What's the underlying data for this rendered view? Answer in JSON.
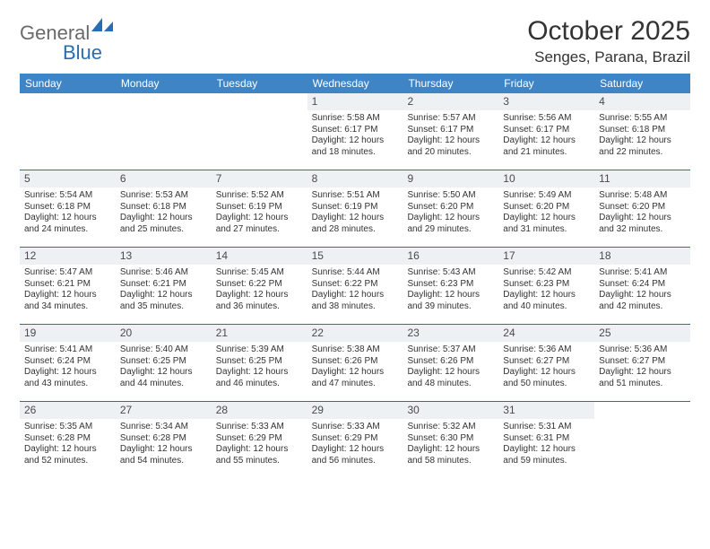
{
  "brand": {
    "general": "General",
    "blue": "Blue",
    "accent_color": "#2a6db0",
    "header_bg": "#3f85c6",
    "text_color": "#333333",
    "muted_text": "#6a6a6a",
    "date_bg": "#eef1f3"
  },
  "title": "October 2025",
  "location": "Senges, Parana, Brazil",
  "layout": {
    "month_fontsize_pt": 22,
    "location_fontsize_pt": 13,
    "dayhead_fontsize_pt": 9,
    "cell_fontsize_pt": 7.5,
    "rows": 5,
    "cols": 7
  },
  "day_headers": [
    "Sunday",
    "Monday",
    "Tuesday",
    "Wednesday",
    "Thursday",
    "Friday",
    "Saturday"
  ],
  "weeks": [
    [
      {
        "empty": true
      },
      {
        "empty": true
      },
      {
        "empty": true
      },
      {
        "date": "1",
        "sunrise": "Sunrise: 5:58 AM",
        "sunset": "Sunset: 6:17 PM",
        "daylight1": "Daylight: 12 hours",
        "daylight2": "and 18 minutes."
      },
      {
        "date": "2",
        "sunrise": "Sunrise: 5:57 AM",
        "sunset": "Sunset: 6:17 PM",
        "daylight1": "Daylight: 12 hours",
        "daylight2": "and 20 minutes."
      },
      {
        "date": "3",
        "sunrise": "Sunrise: 5:56 AM",
        "sunset": "Sunset: 6:17 PM",
        "daylight1": "Daylight: 12 hours",
        "daylight2": "and 21 minutes."
      },
      {
        "date": "4",
        "sunrise": "Sunrise: 5:55 AM",
        "sunset": "Sunset: 6:18 PM",
        "daylight1": "Daylight: 12 hours",
        "daylight2": "and 22 minutes."
      }
    ],
    [
      {
        "date": "5",
        "sunrise": "Sunrise: 5:54 AM",
        "sunset": "Sunset: 6:18 PM",
        "daylight1": "Daylight: 12 hours",
        "daylight2": "and 24 minutes."
      },
      {
        "date": "6",
        "sunrise": "Sunrise: 5:53 AM",
        "sunset": "Sunset: 6:18 PM",
        "daylight1": "Daylight: 12 hours",
        "daylight2": "and 25 minutes."
      },
      {
        "date": "7",
        "sunrise": "Sunrise: 5:52 AM",
        "sunset": "Sunset: 6:19 PM",
        "daylight1": "Daylight: 12 hours",
        "daylight2": "and 27 minutes."
      },
      {
        "date": "8",
        "sunrise": "Sunrise: 5:51 AM",
        "sunset": "Sunset: 6:19 PM",
        "daylight1": "Daylight: 12 hours",
        "daylight2": "and 28 minutes."
      },
      {
        "date": "9",
        "sunrise": "Sunrise: 5:50 AM",
        "sunset": "Sunset: 6:20 PM",
        "daylight1": "Daylight: 12 hours",
        "daylight2": "and 29 minutes."
      },
      {
        "date": "10",
        "sunrise": "Sunrise: 5:49 AM",
        "sunset": "Sunset: 6:20 PM",
        "daylight1": "Daylight: 12 hours",
        "daylight2": "and 31 minutes."
      },
      {
        "date": "11",
        "sunrise": "Sunrise: 5:48 AM",
        "sunset": "Sunset: 6:20 PM",
        "daylight1": "Daylight: 12 hours",
        "daylight2": "and 32 minutes."
      }
    ],
    [
      {
        "date": "12",
        "sunrise": "Sunrise: 5:47 AM",
        "sunset": "Sunset: 6:21 PM",
        "daylight1": "Daylight: 12 hours",
        "daylight2": "and 34 minutes."
      },
      {
        "date": "13",
        "sunrise": "Sunrise: 5:46 AM",
        "sunset": "Sunset: 6:21 PM",
        "daylight1": "Daylight: 12 hours",
        "daylight2": "and 35 minutes."
      },
      {
        "date": "14",
        "sunrise": "Sunrise: 5:45 AM",
        "sunset": "Sunset: 6:22 PM",
        "daylight1": "Daylight: 12 hours",
        "daylight2": "and 36 minutes."
      },
      {
        "date": "15",
        "sunrise": "Sunrise: 5:44 AM",
        "sunset": "Sunset: 6:22 PM",
        "daylight1": "Daylight: 12 hours",
        "daylight2": "and 38 minutes."
      },
      {
        "date": "16",
        "sunrise": "Sunrise: 5:43 AM",
        "sunset": "Sunset: 6:23 PM",
        "daylight1": "Daylight: 12 hours",
        "daylight2": "and 39 minutes."
      },
      {
        "date": "17",
        "sunrise": "Sunrise: 5:42 AM",
        "sunset": "Sunset: 6:23 PM",
        "daylight1": "Daylight: 12 hours",
        "daylight2": "and 40 minutes."
      },
      {
        "date": "18",
        "sunrise": "Sunrise: 5:41 AM",
        "sunset": "Sunset: 6:24 PM",
        "daylight1": "Daylight: 12 hours",
        "daylight2": "and 42 minutes."
      }
    ],
    [
      {
        "date": "19",
        "sunrise": "Sunrise: 5:41 AM",
        "sunset": "Sunset: 6:24 PM",
        "daylight1": "Daylight: 12 hours",
        "daylight2": "and 43 minutes."
      },
      {
        "date": "20",
        "sunrise": "Sunrise: 5:40 AM",
        "sunset": "Sunset: 6:25 PM",
        "daylight1": "Daylight: 12 hours",
        "daylight2": "and 44 minutes."
      },
      {
        "date": "21",
        "sunrise": "Sunrise: 5:39 AM",
        "sunset": "Sunset: 6:25 PM",
        "daylight1": "Daylight: 12 hours",
        "daylight2": "and 46 minutes."
      },
      {
        "date": "22",
        "sunrise": "Sunrise: 5:38 AM",
        "sunset": "Sunset: 6:26 PM",
        "daylight1": "Daylight: 12 hours",
        "daylight2": "and 47 minutes."
      },
      {
        "date": "23",
        "sunrise": "Sunrise: 5:37 AM",
        "sunset": "Sunset: 6:26 PM",
        "daylight1": "Daylight: 12 hours",
        "daylight2": "and 48 minutes."
      },
      {
        "date": "24",
        "sunrise": "Sunrise: 5:36 AM",
        "sunset": "Sunset: 6:27 PM",
        "daylight1": "Daylight: 12 hours",
        "daylight2": "and 50 minutes."
      },
      {
        "date": "25",
        "sunrise": "Sunrise: 5:36 AM",
        "sunset": "Sunset: 6:27 PM",
        "daylight1": "Daylight: 12 hours",
        "daylight2": "and 51 minutes."
      }
    ],
    [
      {
        "date": "26",
        "sunrise": "Sunrise: 5:35 AM",
        "sunset": "Sunset: 6:28 PM",
        "daylight1": "Daylight: 12 hours",
        "daylight2": "and 52 minutes."
      },
      {
        "date": "27",
        "sunrise": "Sunrise: 5:34 AM",
        "sunset": "Sunset: 6:28 PM",
        "daylight1": "Daylight: 12 hours",
        "daylight2": "and 54 minutes."
      },
      {
        "date": "28",
        "sunrise": "Sunrise: 5:33 AM",
        "sunset": "Sunset: 6:29 PM",
        "daylight1": "Daylight: 12 hours",
        "daylight2": "and 55 minutes."
      },
      {
        "date": "29",
        "sunrise": "Sunrise: 5:33 AM",
        "sunset": "Sunset: 6:29 PM",
        "daylight1": "Daylight: 12 hours",
        "daylight2": "and 56 minutes."
      },
      {
        "date": "30",
        "sunrise": "Sunrise: 5:32 AM",
        "sunset": "Sunset: 6:30 PM",
        "daylight1": "Daylight: 12 hours",
        "daylight2": "and 58 minutes."
      },
      {
        "date": "31",
        "sunrise": "Sunrise: 5:31 AM",
        "sunset": "Sunset: 6:31 PM",
        "daylight1": "Daylight: 12 hours",
        "daylight2": "and 59 minutes."
      },
      {
        "empty": true
      }
    ]
  ]
}
